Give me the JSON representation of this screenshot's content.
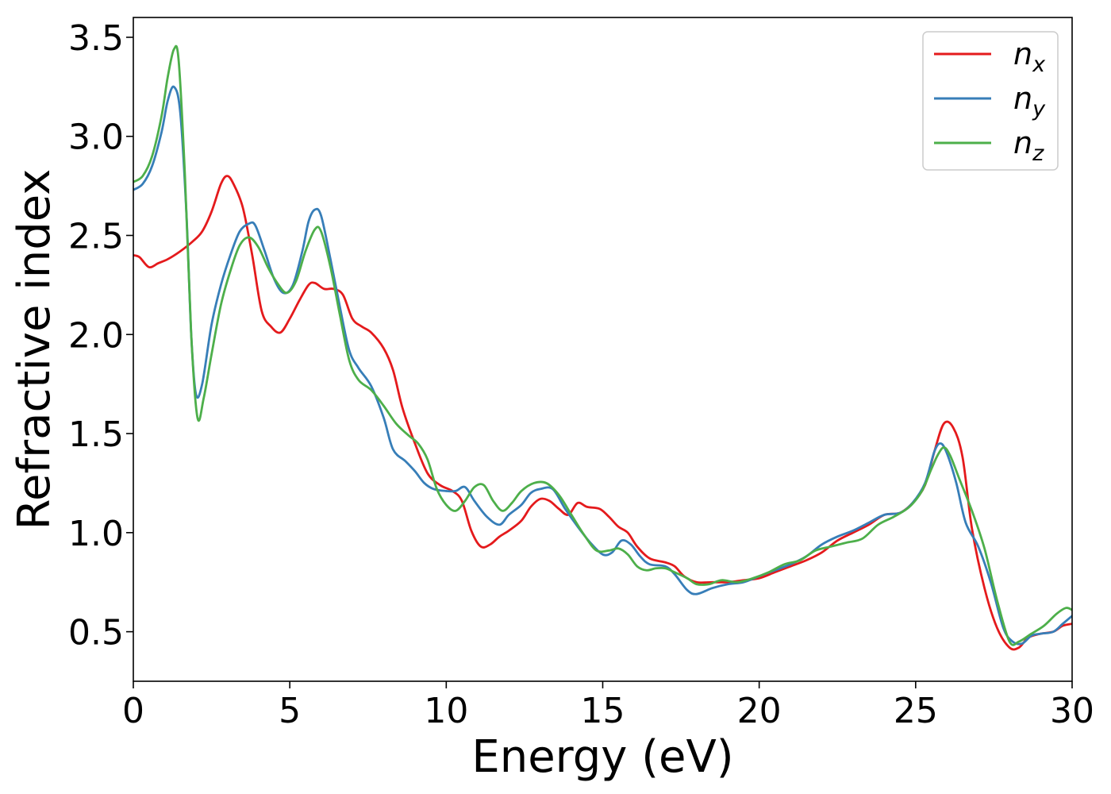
{
  "chart_data": {
    "type": "line",
    "xlabel": "Energy (eV)",
    "ylabel": "Refractive index",
    "xlim": [
      0,
      30
    ],
    "ylim": [
      0.25,
      3.6
    ],
    "xticks": [
      0,
      5,
      10,
      15,
      20,
      25,
      30
    ],
    "yticks": [
      0.5,
      1.0,
      1.5,
      2.0,
      2.5,
      3.0,
      3.5
    ],
    "xtick_labels": [
      "0",
      "5",
      "10",
      "15",
      "20",
      "25",
      "30"
    ],
    "ytick_labels": [
      "0.5",
      "1.0",
      "1.5",
      "2.0",
      "2.5",
      "3.0",
      "3.5"
    ],
    "grid": false,
    "legend_position": "top-right",
    "series": [
      {
        "name": "n",
        "subscript": "x",
        "color": "#e41a1c",
        "points": [
          [
            0,
            2.4
          ],
          [
            0.2,
            2.39
          ],
          [
            0.5,
            2.34
          ],
          [
            0.8,
            2.36
          ],
          [
            1.1,
            2.38
          ],
          [
            1.5,
            2.42
          ],
          [
            1.9,
            2.47
          ],
          [
            2.2,
            2.52
          ],
          [
            2.5,
            2.62
          ],
          [
            2.8,
            2.76
          ],
          [
            3.0,
            2.8
          ],
          [
            3.2,
            2.76
          ],
          [
            3.5,
            2.64
          ],
          [
            3.8,
            2.4
          ],
          [
            4.1,
            2.12
          ],
          [
            4.4,
            2.04
          ],
          [
            4.7,
            2.01
          ],
          [
            5.0,
            2.08
          ],
          [
            5.3,
            2.17
          ],
          [
            5.6,
            2.25
          ],
          [
            5.8,
            2.26
          ],
          [
            6.1,
            2.23
          ],
          [
            6.4,
            2.23
          ],
          [
            6.7,
            2.2
          ],
          [
            7.0,
            2.08
          ],
          [
            7.3,
            2.04
          ],
          [
            7.6,
            2.01
          ],
          [
            8.0,
            1.93
          ],
          [
            8.3,
            1.82
          ],
          [
            8.6,
            1.63
          ],
          [
            9.0,
            1.45
          ],
          [
            9.4,
            1.3
          ],
          [
            9.8,
            1.24
          ],
          [
            10.2,
            1.21
          ],
          [
            10.5,
            1.16
          ],
          [
            10.8,
            1.01
          ],
          [
            11.1,
            0.93
          ],
          [
            11.4,
            0.94
          ],
          [
            11.7,
            0.98
          ],
          [
            12.0,
            1.01
          ],
          [
            12.4,
            1.06
          ],
          [
            12.7,
            1.13
          ],
          [
            13.0,
            1.17
          ],
          [
            13.3,
            1.16
          ],
          [
            13.6,
            1.12
          ],
          [
            13.9,
            1.09
          ],
          [
            14.2,
            1.15
          ],
          [
            14.5,
            1.13
          ],
          [
            14.9,
            1.12
          ],
          [
            15.2,
            1.08
          ],
          [
            15.5,
            1.03
          ],
          [
            15.8,
            1.0
          ],
          [
            16.1,
            0.93
          ],
          [
            16.5,
            0.87
          ],
          [
            17.0,
            0.85
          ],
          [
            17.3,
            0.83
          ],
          [
            17.6,
            0.78
          ],
          [
            18.0,
            0.75
          ],
          [
            18.5,
            0.75
          ],
          [
            19.0,
            0.75
          ],
          [
            19.5,
            0.76
          ],
          [
            20.0,
            0.77
          ],
          [
            20.5,
            0.8
          ],
          [
            21.0,
            0.83
          ],
          [
            21.5,
            0.86
          ],
          [
            22.0,
            0.9
          ],
          [
            22.5,
            0.96
          ],
          [
            23.0,
            1.0
          ],
          [
            23.5,
            1.04
          ],
          [
            24.0,
            1.09
          ],
          [
            24.5,
            1.1
          ],
          [
            24.9,
            1.15
          ],
          [
            25.3,
            1.24
          ],
          [
            25.6,
            1.41
          ],
          [
            25.9,
            1.55
          ],
          [
            26.2,
            1.53
          ],
          [
            26.5,
            1.38
          ],
          [
            26.8,
            1.02
          ],
          [
            27.2,
            0.72
          ],
          [
            27.6,
            0.52
          ],
          [
            28.0,
            0.42
          ],
          [
            28.3,
            0.42
          ],
          [
            28.6,
            0.47
          ],
          [
            29.0,
            0.49
          ],
          [
            29.4,
            0.5
          ],
          [
            29.7,
            0.53
          ],
          [
            30.0,
            0.54
          ]
        ]
      },
      {
        "name": "n",
        "subscript": "y",
        "color": "#377eb8",
        "points": [
          [
            0,
            2.73
          ],
          [
            0.3,
            2.76
          ],
          [
            0.6,
            2.85
          ],
          [
            0.9,
            3.02
          ],
          [
            1.1,
            3.18
          ],
          [
            1.3,
            3.25
          ],
          [
            1.5,
            3.12
          ],
          [
            1.7,
            2.6
          ],
          [
            1.85,
            2.0
          ],
          [
            2.0,
            1.7
          ],
          [
            2.2,
            1.75
          ],
          [
            2.5,
            2.05
          ],
          [
            2.8,
            2.25
          ],
          [
            3.1,
            2.4
          ],
          [
            3.4,
            2.52
          ],
          [
            3.7,
            2.56
          ],
          [
            3.9,
            2.55
          ],
          [
            4.2,
            2.42
          ],
          [
            4.5,
            2.28
          ],
          [
            4.8,
            2.21
          ],
          [
            5.1,
            2.25
          ],
          [
            5.4,
            2.42
          ],
          [
            5.6,
            2.57
          ],
          [
            5.8,
            2.63
          ],
          [
            6.0,
            2.6
          ],
          [
            6.3,
            2.38
          ],
          [
            6.6,
            2.14
          ],
          [
            6.9,
            1.92
          ],
          [
            7.2,
            1.83
          ],
          [
            7.6,
            1.74
          ],
          [
            8.0,
            1.58
          ],
          [
            8.3,
            1.42
          ],
          [
            8.7,
            1.36
          ],
          [
            9.0,
            1.31
          ],
          [
            9.3,
            1.25
          ],
          [
            9.6,
            1.22
          ],
          [
            10.0,
            1.21
          ],
          [
            10.3,
            1.21
          ],
          [
            10.6,
            1.23
          ],
          [
            10.9,
            1.16
          ],
          [
            11.3,
            1.08
          ],
          [
            11.7,
            1.04
          ],
          [
            12.0,
            1.09
          ],
          [
            12.4,
            1.14
          ],
          [
            12.7,
            1.2
          ],
          [
            13.0,
            1.22
          ],
          [
            13.4,
            1.22
          ],
          [
            13.8,
            1.12
          ],
          [
            14.2,
            1.03
          ],
          [
            14.6,
            0.95
          ],
          [
            15.0,
            0.89
          ],
          [
            15.3,
            0.9
          ],
          [
            15.6,
            0.96
          ],
          [
            15.9,
            0.94
          ],
          [
            16.2,
            0.88
          ],
          [
            16.5,
            0.84
          ],
          [
            17.0,
            0.83
          ],
          [
            17.3,
            0.79
          ],
          [
            17.7,
            0.71
          ],
          [
            18.0,
            0.69
          ],
          [
            18.5,
            0.72
          ],
          [
            19.0,
            0.74
          ],
          [
            19.5,
            0.75
          ],
          [
            20.0,
            0.78
          ],
          [
            20.5,
            0.81
          ],
          [
            21.0,
            0.84
          ],
          [
            21.5,
            0.88
          ],
          [
            22.0,
            0.94
          ],
          [
            22.5,
            0.98
          ],
          [
            23.0,
            1.01
          ],
          [
            23.5,
            1.05
          ],
          [
            24.0,
            1.09
          ],
          [
            24.5,
            1.1
          ],
          [
            24.9,
            1.15
          ],
          [
            25.3,
            1.25
          ],
          [
            25.6,
            1.41
          ],
          [
            25.8,
            1.45
          ],
          [
            26.0,
            1.4
          ],
          [
            26.3,
            1.25
          ],
          [
            26.6,
            1.05
          ],
          [
            27.0,
            0.93
          ],
          [
            27.4,
            0.75
          ],
          [
            27.8,
            0.52
          ],
          [
            28.1,
            0.45
          ],
          [
            28.4,
            0.44
          ],
          [
            28.7,
            0.48
          ],
          [
            29.0,
            0.49
          ],
          [
            29.4,
            0.5
          ],
          [
            29.7,
            0.54
          ],
          [
            30.0,
            0.58
          ]
        ]
      },
      {
        "name": "n",
        "subscript": "z",
        "color": "#4daf4a",
        "points": [
          [
            0,
            2.77
          ],
          [
            0.3,
            2.8
          ],
          [
            0.6,
            2.9
          ],
          [
            0.9,
            3.1
          ],
          [
            1.1,
            3.3
          ],
          [
            1.3,
            3.44
          ],
          [
            1.45,
            3.38
          ],
          [
            1.65,
            2.8
          ],
          [
            1.85,
            2.0
          ],
          [
            2.05,
            1.58
          ],
          [
            2.25,
            1.68
          ],
          [
            2.5,
            1.9
          ],
          [
            2.8,
            2.15
          ],
          [
            3.1,
            2.32
          ],
          [
            3.4,
            2.45
          ],
          [
            3.7,
            2.49
          ],
          [
            4.0,
            2.44
          ],
          [
            4.3,
            2.34
          ],
          [
            4.6,
            2.26
          ],
          [
            4.9,
            2.21
          ],
          [
            5.2,
            2.27
          ],
          [
            5.5,
            2.42
          ],
          [
            5.8,
            2.53
          ],
          [
            6.0,
            2.52
          ],
          [
            6.3,
            2.34
          ],
          [
            6.6,
            2.1
          ],
          [
            6.9,
            1.87
          ],
          [
            7.2,
            1.77
          ],
          [
            7.6,
            1.72
          ],
          [
            8.0,
            1.64
          ],
          [
            8.4,
            1.55
          ],
          [
            8.8,
            1.49
          ],
          [
            9.1,
            1.45
          ],
          [
            9.4,
            1.37
          ],
          [
            9.7,
            1.22
          ],
          [
            10.0,
            1.14
          ],
          [
            10.3,
            1.11
          ],
          [
            10.6,
            1.16
          ],
          [
            10.9,
            1.23
          ],
          [
            11.2,
            1.24
          ],
          [
            11.5,
            1.16
          ],
          [
            11.8,
            1.11
          ],
          [
            12.1,
            1.15
          ],
          [
            12.4,
            1.21
          ],
          [
            12.8,
            1.25
          ],
          [
            13.2,
            1.25
          ],
          [
            13.6,
            1.19
          ],
          [
            14.0,
            1.09
          ],
          [
            14.4,
            0.99
          ],
          [
            14.8,
            0.91
          ],
          [
            15.2,
            0.91
          ],
          [
            15.5,
            0.92
          ],
          [
            15.8,
            0.89
          ],
          [
            16.1,
            0.83
          ],
          [
            16.4,
            0.81
          ],
          [
            16.7,
            0.82
          ],
          [
            17.0,
            0.82
          ],
          [
            17.3,
            0.8
          ],
          [
            17.7,
            0.77
          ],
          [
            18.0,
            0.74
          ],
          [
            18.4,
            0.74
          ],
          [
            18.8,
            0.76
          ],
          [
            19.3,
            0.75
          ],
          [
            19.8,
            0.77
          ],
          [
            20.3,
            0.8
          ],
          [
            20.8,
            0.84
          ],
          [
            21.3,
            0.86
          ],
          [
            21.8,
            0.91
          ],
          [
            22.3,
            0.93
          ],
          [
            22.8,
            0.95
          ],
          [
            23.3,
            0.97
          ],
          [
            23.8,
            1.04
          ],
          [
            24.3,
            1.08
          ],
          [
            24.8,
            1.13
          ],
          [
            25.2,
            1.21
          ],
          [
            25.5,
            1.32
          ],
          [
            25.7,
            1.39
          ],
          [
            25.9,
            1.43
          ],
          [
            26.1,
            1.39
          ],
          [
            26.4,
            1.27
          ],
          [
            26.8,
            1.11
          ],
          [
            27.2,
            0.92
          ],
          [
            27.6,
            0.66
          ],
          [
            28.0,
            0.45
          ],
          [
            28.3,
            0.45
          ],
          [
            28.7,
            0.49
          ],
          [
            29.1,
            0.53
          ],
          [
            29.5,
            0.59
          ],
          [
            29.8,
            0.62
          ],
          [
            30.0,
            0.61
          ]
        ]
      }
    ]
  }
}
